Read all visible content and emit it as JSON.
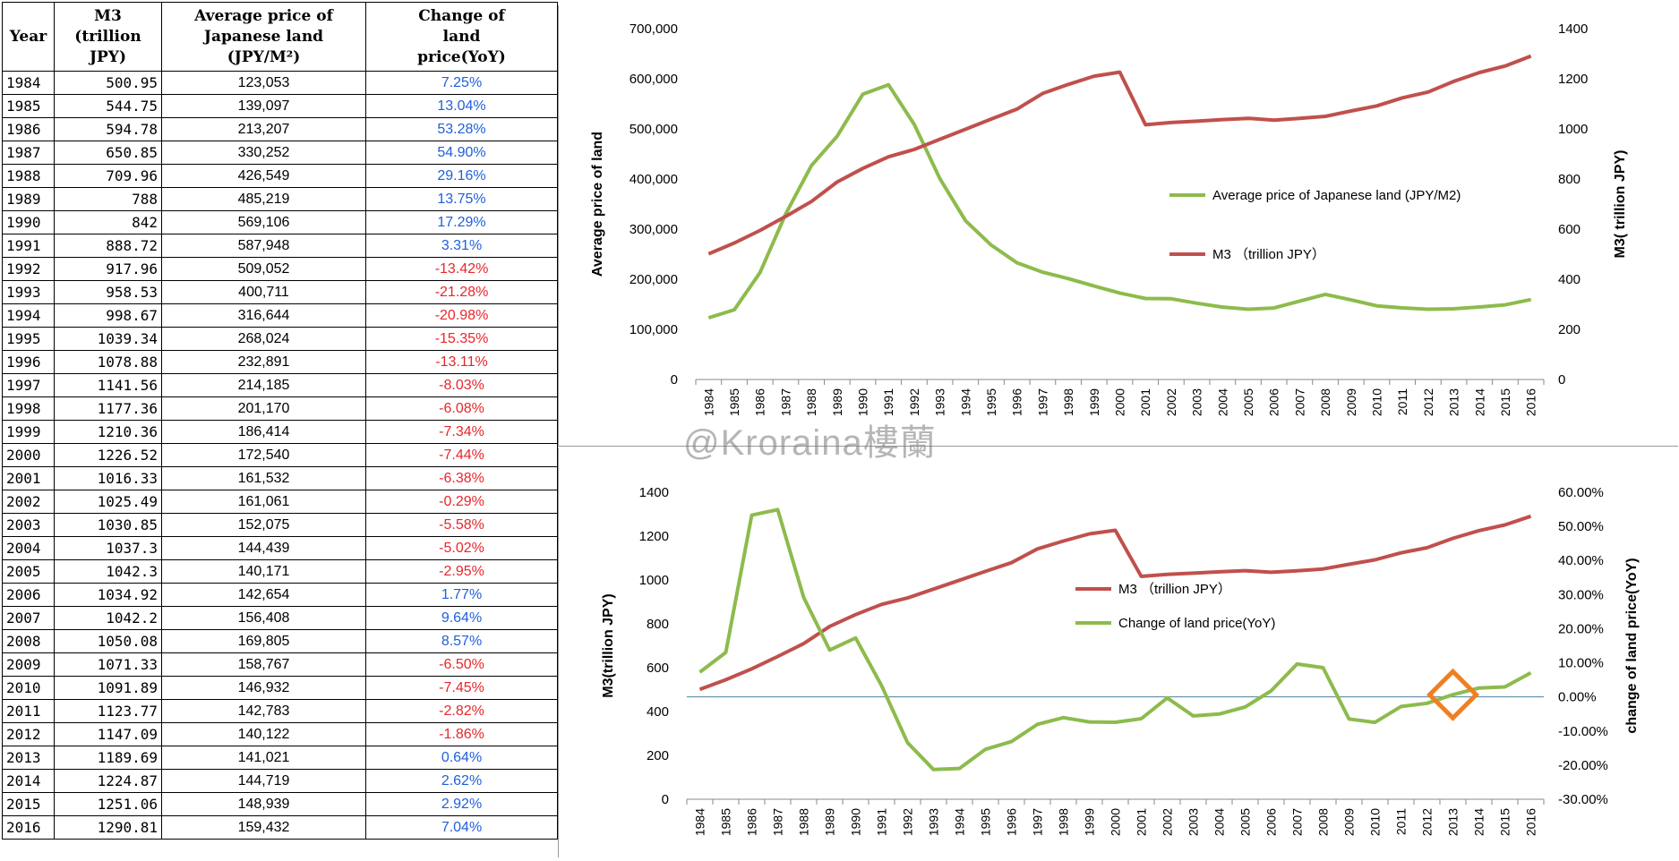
{
  "table": {
    "headers": {
      "year": "Year",
      "m3": [
        "M3",
        "(trillion",
        "JPY)"
      ],
      "price": [
        "Average price of",
        "Japanese land",
        "(JPY/M²)"
      ],
      "change": [
        "Change of",
        "land",
        "price(YoY)"
      ]
    },
    "rows": [
      {
        "year": "1984",
        "m3": "500.95",
        "price": "123,053",
        "change": "7.25%",
        "sign": "pos"
      },
      {
        "year": "1985",
        "m3": "544.75",
        "price": "139,097",
        "change": "13.04%",
        "sign": "pos"
      },
      {
        "year": "1986",
        "m3": "594.78",
        "price": "213,207",
        "change": "53.28%",
        "sign": "pos"
      },
      {
        "year": "1987",
        "m3": "650.85",
        "price": "330,252",
        "change": "54.90%",
        "sign": "pos"
      },
      {
        "year": "1988",
        "m3": "709.96",
        "price": "426,549",
        "change": "29.16%",
        "sign": "pos"
      },
      {
        "year": "1989",
        "m3": "788",
        "price": "485,219",
        "change": "13.75%",
        "sign": "pos"
      },
      {
        "year": "1990",
        "m3": "842",
        "price": "569,106",
        "change": "17.29%",
        "sign": "pos"
      },
      {
        "year": "1991",
        "m3": "888.72",
        "price": "587,948",
        "change": "3.31%",
        "sign": "pos"
      },
      {
        "year": "1992",
        "m3": "917.96",
        "price": "509,052",
        "change": "-13.42%",
        "sign": "neg"
      },
      {
        "year": "1993",
        "m3": "958.53",
        "price": "400,711",
        "change": "-21.28%",
        "sign": "neg"
      },
      {
        "year": "1994",
        "m3": "998.67",
        "price": "316,644",
        "change": "-20.98%",
        "sign": "neg"
      },
      {
        "year": "1995",
        "m3": "1039.34",
        "price": "268,024",
        "change": "-15.35%",
        "sign": "neg"
      },
      {
        "year": "1996",
        "m3": "1078.88",
        "price": "232,891",
        "change": "-13.11%",
        "sign": "neg"
      },
      {
        "year": "1997",
        "m3": "1141.56",
        "price": "214,185",
        "change": "-8.03%",
        "sign": "neg"
      },
      {
        "year": "1998",
        "m3": "1177.36",
        "price": "201,170",
        "change": "-6.08%",
        "sign": "neg"
      },
      {
        "year": "1999",
        "m3": "1210.36",
        "price": "186,414",
        "change": "-7.34%",
        "sign": "neg"
      },
      {
        "year": "2000",
        "m3": "1226.52",
        "price": "172,540",
        "change": "-7.44%",
        "sign": "neg"
      },
      {
        "year": "2001",
        "m3": "1016.33",
        "price": "161,532",
        "change": "-6.38%",
        "sign": "neg"
      },
      {
        "year": "2002",
        "m3": "1025.49",
        "price": "161,061",
        "change": "-0.29%",
        "sign": "neg"
      },
      {
        "year": "2003",
        "m3": "1030.85",
        "price": "152,075",
        "change": "-5.58%",
        "sign": "neg"
      },
      {
        "year": "2004",
        "m3": "1037.3",
        "price": "144,439",
        "change": "-5.02%",
        "sign": "neg"
      },
      {
        "year": "2005",
        "m3": "1042.3",
        "price": "140,171",
        "change": "-2.95%",
        "sign": "neg"
      },
      {
        "year": "2006",
        "m3": "1034.92",
        "price": "142,654",
        "change": "1.77%",
        "sign": "pos"
      },
      {
        "year": "2007",
        "m3": "1042.2",
        "price": "156,408",
        "change": "9.64%",
        "sign": "pos"
      },
      {
        "year": "2008",
        "m3": "1050.08",
        "price": "169,805",
        "change": "8.57%",
        "sign": "pos"
      },
      {
        "year": "2009",
        "m3": "1071.33",
        "price": "158,767",
        "change": "-6.50%",
        "sign": "neg"
      },
      {
        "year": "2010",
        "m3": "1091.89",
        "price": "146,932",
        "change": "-7.45%",
        "sign": "neg"
      },
      {
        "year": "2011",
        "m3": "1123.77",
        "price": "142,783",
        "change": "-2.82%",
        "sign": "neg"
      },
      {
        "year": "2012",
        "m3": "1147.09",
        "price": "140,122",
        "change": "-1.86%",
        "sign": "neg"
      },
      {
        "year": "2013",
        "m3": "1189.69",
        "price": "141,021",
        "change": "0.64%",
        "sign": "pos"
      },
      {
        "year": "2014",
        "m3": "1224.87",
        "price": "144,719",
        "change": "2.62%",
        "sign": "pos"
      },
      {
        "year": "2015",
        "m3": "1251.06",
        "price": "148,939",
        "change": "2.92%",
        "sign": "pos"
      },
      {
        "year": "2016",
        "m3": "1290.81",
        "price": "159,432",
        "change": "7.04%",
        "sign": "pos"
      }
    ]
  },
  "colors": {
    "green": "#8dbb4c",
    "red": "#c0504d",
    "positive_text": "#1f5fdc",
    "negative_text": "#e8262b",
    "marker": "#f07f22",
    "zero_line": "#4a7ea5"
  },
  "watermark": "@Kroraina樓蘭",
  "chart_data": [
    {
      "type": "line",
      "x": [
        1984,
        1985,
        1986,
        1987,
        1988,
        1989,
        1990,
        1991,
        1992,
        1993,
        1994,
        1995,
        1996,
        1997,
        1998,
        1999,
        2000,
        2001,
        2002,
        2003,
        2004,
        2005,
        2006,
        2007,
        2008,
        2009,
        2010,
        2011,
        2012,
        2013,
        2014,
        2015,
        2016
      ],
      "series": [
        {
          "name": "Average price of Japanese land (JPY/M2)",
          "axis": "left",
          "color": "#8dbb4c",
          "values": [
            123053,
            139097,
            213207,
            330252,
            426549,
            485219,
            569106,
            587948,
            509052,
            400711,
            316644,
            268024,
            232891,
            214185,
            201170,
            186414,
            172540,
            161532,
            161061,
            152075,
            144439,
            140171,
            142654,
            156408,
            169805,
            158767,
            146932,
            142783,
            140122,
            141021,
            144719,
            148939,
            159432
          ]
        },
        {
          "name": "M3 （trillion JPY）",
          "axis": "right",
          "color": "#c0504d",
          "values": [
            500.95,
            544.75,
            594.78,
            650.85,
            709.96,
            788,
            842,
            888.72,
            917.96,
            958.53,
            998.67,
            1039.34,
            1078.88,
            1141.56,
            1177.36,
            1210.36,
            1226.52,
            1016.33,
            1025.49,
            1030.85,
            1037.3,
            1042.3,
            1034.92,
            1042.2,
            1050.08,
            1071.33,
            1091.89,
            1123.77,
            1147.09,
            1189.69,
            1224.87,
            1251.06,
            1290.81
          ]
        }
      ],
      "ylabel_left": "Average price of land",
      "ylabel_right": "M3( trillion JPY)",
      "ylim_left": [
        0,
        700000
      ],
      "yticks_left": [
        "0",
        "100,000",
        "200,000",
        "300,000",
        "400,000",
        "500,000",
        "600,000",
        "700,000"
      ],
      "ylim_right": [
        0,
        1400
      ],
      "yticks_right": [
        "0",
        "200",
        "400",
        "600",
        "800",
        "1000",
        "1200",
        "1400"
      ],
      "legend": "right"
    },
    {
      "type": "line",
      "x": [
        1984,
        1985,
        1986,
        1987,
        1988,
        1989,
        1990,
        1991,
        1992,
        1993,
        1994,
        1995,
        1996,
        1997,
        1998,
        1999,
        2000,
        2001,
        2002,
        2003,
        2004,
        2005,
        2006,
        2007,
        2008,
        2009,
        2010,
        2011,
        2012,
        2013,
        2014,
        2015,
        2016
      ],
      "series": [
        {
          "name": "M3 （trillion JPY）",
          "axis": "left",
          "color": "#c0504d",
          "values": [
            500.95,
            544.75,
            594.78,
            650.85,
            709.96,
            788,
            842,
            888.72,
            917.96,
            958.53,
            998.67,
            1039.34,
            1078.88,
            1141.56,
            1177.36,
            1210.36,
            1226.52,
            1016.33,
            1025.49,
            1030.85,
            1037.3,
            1042.3,
            1034.92,
            1042.2,
            1050.08,
            1071.33,
            1091.89,
            1123.77,
            1147.09,
            1189.69,
            1224.87,
            1251.06,
            1290.81
          ]
        },
        {
          "name": "Change of land price(YoY)",
          "axis": "right",
          "color": "#8dbb4c",
          "values": [
            7.25,
            13.04,
            53.28,
            54.9,
            29.16,
            13.75,
            17.29,
            3.31,
            -13.42,
            -21.28,
            -20.98,
            -15.35,
            -13.11,
            -8.03,
            -6.08,
            -7.34,
            -7.44,
            -6.38,
            -0.29,
            -5.58,
            -5.02,
            -2.95,
            1.77,
            9.64,
            8.57,
            -6.5,
            -7.45,
            -2.82,
            -1.86,
            0.64,
            2.62,
            2.92,
            7.04
          ]
        }
      ],
      "ylabel_left": "M3(trillion JPY)",
      "ylabel_right": "change of land price(YoY)",
      "ylim_left": [
        0,
        1400
      ],
      "yticks_left": [
        "0",
        "200",
        "400",
        "600",
        "800",
        "1000",
        "1200",
        "1400"
      ],
      "ylim_right": [
        -30,
        60
      ],
      "yticks_right": [
        "-30.00%",
        "-20.00%",
        "-10.00%",
        "0.00%",
        "10.00%",
        "20.00%",
        "30.00%",
        "40.00%",
        "50.00%",
        "60.00%"
      ],
      "zero_line": 0,
      "highlight_marker": {
        "year": 2013,
        "value": 0.64,
        "shape": "diamond"
      },
      "legend": "right"
    }
  ]
}
